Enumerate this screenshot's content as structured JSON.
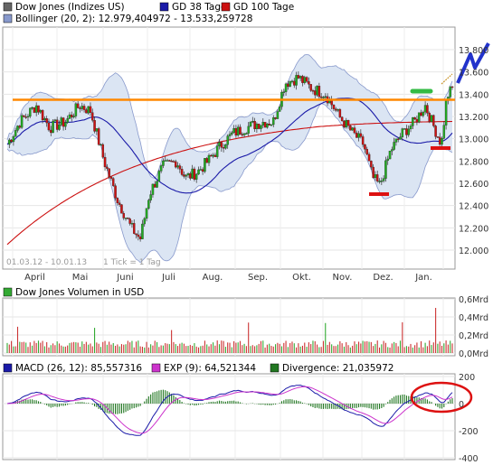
{
  "legend_top": {
    "row1": [
      {
        "label": "Dow Jones (Indizes US)",
        "color": "#666666"
      },
      {
        "label": "GD 38 Tage",
        "color": "#1a1aa8"
      },
      {
        "label": "GD 100 Tage",
        "color": "#cc1111"
      }
    ],
    "row2": [
      {
        "label": "Bollinger (20, 2): 12.979,404972 - 13.533,259728",
        "color": "#8899cc"
      }
    ]
  },
  "price_panel": {
    "y_ticks": [
      "13.800",
      "13.600",
      "13.400",
      "13.200",
      "13.000",
      "12.800",
      "12.600",
      "12.400",
      "12.200",
      "12.000"
    ],
    "y_values": [
      13800,
      13600,
      13400,
      13200,
      13000,
      12800,
      12600,
      12400,
      12200,
      12000
    ],
    "x_labels": [
      "April",
      "Mai",
      "Juni",
      "Juli",
      "Aug.",
      "Sep.",
      "Okt.",
      "Nov.",
      "Dez.",
      "Jan."
    ],
    "date_range": "01.03.12 - 10.01.13",
    "tick_info": "1 Tick = 1 Tag",
    "resistance": 13350,
    "colors": {
      "resistance": "#ff8800",
      "support": "#dd1111",
      "top_mark": "#33bb44",
      "arrow": "#2233cc",
      "ma38": "#1a1aa8",
      "ma100": "#cc1111",
      "boll_fill": "#dbe5f3",
      "boll_line": "#8899cc"
    }
  },
  "volume_panel": {
    "legend": "Dow Jones Volumen in USD",
    "color": "#33aa33",
    "y_ticks": [
      "0,6Mrd",
      "0,4Mrd",
      "0,2Mrd",
      "0,0Mrd"
    ]
  },
  "macd_panel": {
    "legend": [
      {
        "label": "MACD (26, 12): 85,557316",
        "color": "#1a1aa8"
      },
      {
        "label": "EXP (9): 64,521344",
        "color": "#cc33cc"
      },
      {
        "label": "Divergence: 21,035972",
        "color": "#227722"
      }
    ],
    "y_ticks": [
      "200",
      "0",
      "-200",
      "-400"
    ],
    "highlight_color": "#dd1111"
  },
  "chart_data": {
    "type": "line",
    "title": "Dow Jones (Indizes US)",
    "x_range": [
      "01.03.12",
      "10.01.13"
    ],
    "ylim": [
      11900,
      13900
    ],
    "key_points": {
      "x": [
        "Mar",
        "Apr",
        "Mai",
        "Jun",
        "Jul",
        "Aug",
        "Sep",
        "Okt",
        "Nov",
        "Dez",
        "Jan"
      ],
      "close": [
        12950,
        13200,
        13150,
        12200,
        12800,
        12950,
        13150,
        13550,
        12650,
        13100,
        13450
      ]
    },
    "resistance_level": 13350,
    "macd": {
      "MACD": 85.557316,
      "EXP": 64.521344,
      "Divergence": 21.035972
    },
    "bollinger": {
      "period": 20,
      "k": 2,
      "lower": 12979.404972,
      "upper": 13533.259728
    }
  }
}
